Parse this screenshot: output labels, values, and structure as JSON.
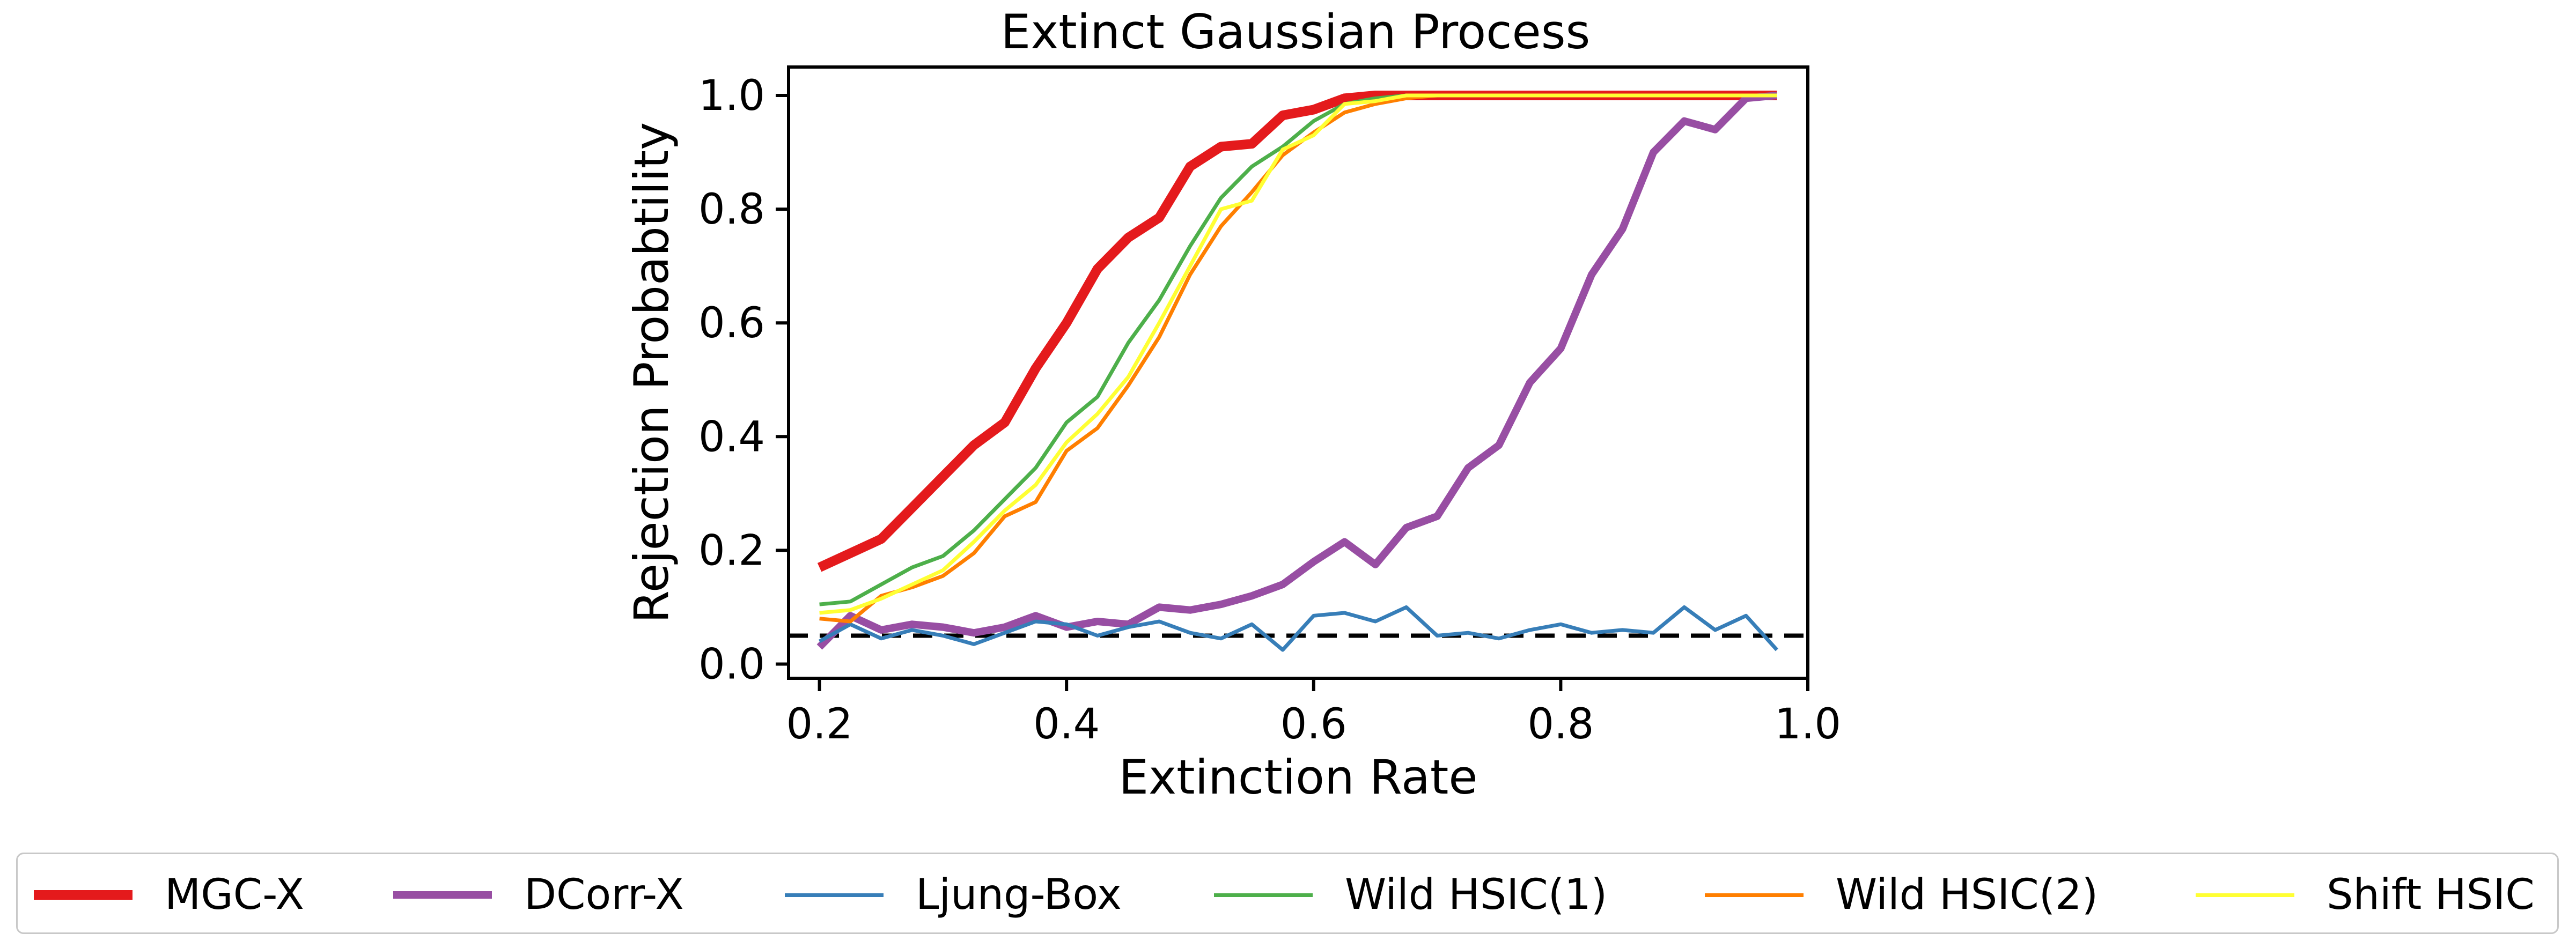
{
  "chart_data": {
    "type": "line",
    "title": "Extinct Gaussian Process",
    "xlabel": "Extinction Rate",
    "ylabel": "Rejection Probabtility",
    "xlim": [
      0.175,
      1.0
    ],
    "ylim": [
      -0.025,
      1.05
    ],
    "xticks": [
      "0.2",
      "0.4",
      "0.6",
      "0.8",
      "1.0"
    ],
    "yticks": [
      "0.0",
      "0.2",
      "0.4",
      "0.6",
      "0.8",
      "1.0"
    ],
    "reference_line": {
      "y": 0.05,
      "style": "dashed",
      "color": "#000000"
    },
    "legend_position": "below",
    "x": [
      0.2,
      0.225,
      0.25,
      0.275,
      0.3,
      0.325,
      0.35,
      0.375,
      0.4,
      0.425,
      0.45,
      0.475,
      0.5,
      0.525,
      0.55,
      0.575,
      0.6,
      0.625,
      0.65,
      0.675,
      0.7,
      0.725,
      0.75,
      0.775,
      0.8,
      0.825,
      0.85,
      0.875,
      0.9,
      0.925,
      0.95,
      0.975
    ],
    "series": [
      {
        "name": "MGC-X",
        "color": "#e41a1c",
        "width": 18,
        "values": [
          0.17,
          0.195,
          0.22,
          0.275,
          0.33,
          0.385,
          0.425,
          0.52,
          0.6,
          0.695,
          0.75,
          0.785,
          0.875,
          0.91,
          0.915,
          0.965,
          0.975,
          0.995,
          1.0,
          1.0,
          1.0,
          1.0,
          1.0,
          1.0,
          1.0,
          1.0,
          1.0,
          1.0,
          1.0,
          1.0,
          1.0,
          1.0
        ]
      },
      {
        "name": "DCorr-X",
        "color": "#984ea3",
        "width": 14,
        "values": [
          0.03,
          0.085,
          0.06,
          0.07,
          0.065,
          0.055,
          0.065,
          0.085,
          0.065,
          0.075,
          0.07,
          0.1,
          0.095,
          0.105,
          0.12,
          0.14,
          0.18,
          0.215,
          0.175,
          0.24,
          0.26,
          0.345,
          0.385,
          0.495,
          0.555,
          0.685,
          0.765,
          0.9,
          0.955,
          0.94,
          0.995,
          1.0
        ]
      },
      {
        "name": "Ljung-Box",
        "color": "#377eb8",
        "width": 7,
        "values": [
          0.04,
          0.07,
          0.045,
          0.06,
          0.05,
          0.035,
          0.055,
          0.075,
          0.07,
          0.05,
          0.065,
          0.075,
          0.055,
          0.045,
          0.07,
          0.025,
          0.085,
          0.09,
          0.075,
          0.1,
          0.05,
          0.055,
          0.045,
          0.06,
          0.07,
          0.055,
          0.06,
          0.055,
          0.1,
          0.06,
          0.085,
          0.025
        ]
      },
      {
        "name": "Wild HSIC(1)",
        "color": "#4daf4a",
        "width": 7,
        "values": [
          0.105,
          0.11,
          0.14,
          0.17,
          0.19,
          0.235,
          0.29,
          0.345,
          0.425,
          0.47,
          0.565,
          0.64,
          0.735,
          0.82,
          0.875,
          0.91,
          0.955,
          0.985,
          0.995,
          1.0,
          1.0,
          1.0,
          1.0,
          1.0,
          1.0,
          1.0,
          1.0,
          1.0,
          1.0,
          1.0,
          1.0,
          1.0
        ]
      },
      {
        "name": "Wild HSIC(2)",
        "color": "#ff7f00",
        "width": 7,
        "values": [
          0.08,
          0.075,
          0.12,
          0.135,
          0.155,
          0.195,
          0.26,
          0.285,
          0.375,
          0.415,
          0.49,
          0.575,
          0.685,
          0.77,
          0.83,
          0.895,
          0.935,
          0.97,
          0.985,
          0.995,
          1.0,
          1.0,
          1.0,
          1.0,
          1.0,
          1.0,
          1.0,
          1.0,
          1.0,
          1.0,
          1.0,
          1.0
        ]
      },
      {
        "name": "Shift HSIC",
        "color": "#ffff33",
        "width": 7,
        "values": [
          0.09,
          0.095,
          0.115,
          0.14,
          0.165,
          0.215,
          0.27,
          0.315,
          0.39,
          0.44,
          0.505,
          0.6,
          0.7,
          0.8,
          0.815,
          0.905,
          0.93,
          0.985,
          0.99,
          1.0,
          1.0,
          1.0,
          1.0,
          1.0,
          1.0,
          1.0,
          1.0,
          1.0,
          1.0,
          1.0,
          1.0,
          1.0
        ]
      }
    ]
  }
}
